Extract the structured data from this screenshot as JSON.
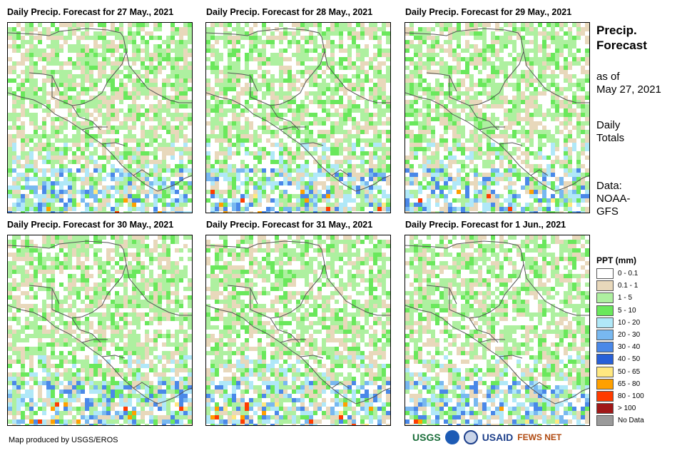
{
  "panels": [
    {
      "title": "Daily Precip. Forecast for 27 May., 2021",
      "seed": 11
    },
    {
      "title": "Daily Precip. Forecast for 28 May., 2021",
      "seed": 23
    },
    {
      "title": "Daily Precip. Forecast for 29 May., 2021",
      "seed": 37
    },
    {
      "title": "Daily Precip. Forecast for 30 May., 2021",
      "seed": 41
    },
    {
      "title": "Daily Precip. Forecast for 31 May., 2021",
      "seed": 53
    },
    {
      "title": "Daily Precip. Forecast for 1 Jun., 2021",
      "seed": 67
    }
  ],
  "side": {
    "title_line1": "Precip.",
    "title_line2": "Forecast",
    "asof_line1": "as of",
    "asof_line2": "May 27, 2021",
    "daily_line1": "Daily",
    "daily_line2": "Totals",
    "data_line1": "Data:",
    "data_line2": "NOAA-",
    "data_line3": "GFS"
  },
  "legend": {
    "title": "PPT (mm)",
    "items": [
      {
        "label": "0 - 0.1",
        "color": "#ffffff"
      },
      {
        "label": "0.1 - 1",
        "color": "#e8d8bb"
      },
      {
        "label": "1 - 5",
        "color": "#aef0a0"
      },
      {
        "label": "5 - 10",
        "color": "#6ae85c"
      },
      {
        "label": "10 - 20",
        "color": "#b0e8f8"
      },
      {
        "label": "20 - 30",
        "color": "#78b8f0"
      },
      {
        "label": "30 - 40",
        "color": "#4a88e8"
      },
      {
        "label": "40 - 50",
        "color": "#2860d8"
      },
      {
        "label": "50 - 65",
        "color": "#ffe880"
      },
      {
        "label": "65 - 80",
        "color": "#ffa000"
      },
      {
        "label": "80 - 100",
        "color": "#ff3c00"
      },
      {
        "label": "> 100",
        "color": "#a01818"
      },
      {
        "label": "No Data",
        "color": "#9a9a9a"
      }
    ]
  },
  "footer": {
    "credit": "Map produced by USGS/EROS"
  },
  "logos": {
    "usgs": "USGS",
    "usaid": "USAID",
    "fewsnet": "FEWS NET"
  }
}
